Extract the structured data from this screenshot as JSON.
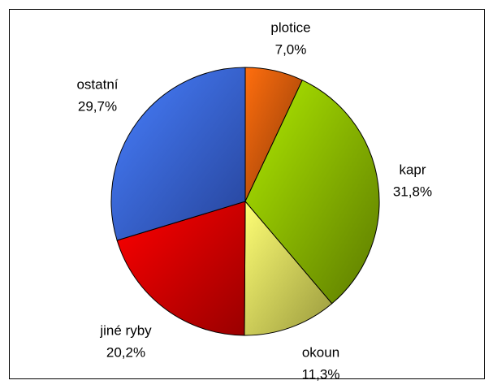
{
  "chart_data": {
    "type": "pie",
    "categories": [
      "plotice",
      "kapr",
      "okoun",
      "jiné ryby",
      "ostatní"
    ],
    "values": [
      7.0,
      31.8,
      11.3,
      20.2,
      29.7
    ],
    "value_labels": [
      "7,0%",
      "31,8%",
      "11,3%",
      "20,2%",
      "29,7%"
    ],
    "colors": [
      "#e8600c",
      "#99cc00",
      "#ffff66",
      "#ff0000",
      "#3f6fff"
    ]
  }
}
